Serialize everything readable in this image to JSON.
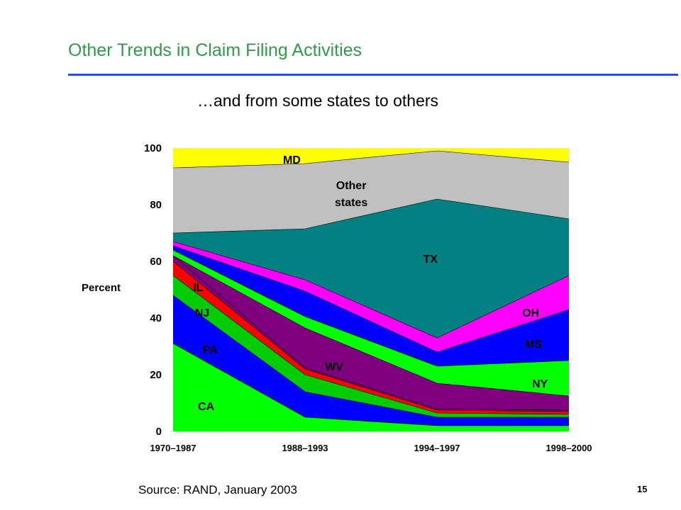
{
  "slide": {
    "title": "Other Trends in Claim Filing Activities",
    "subtitle": "…and from some states to others",
    "source": "Source: RAND, January 2003",
    "page_number": "15",
    "title_color": "#33994d",
    "rule_color": "#2a4fe0"
  },
  "chart_data": {
    "type": "area",
    "stacked": true,
    "categories": [
      "1970–1987",
      "1988–1993",
      "1994–1997",
      "1998–2000"
    ],
    "ylabel": "Percent",
    "ylim": [
      0,
      100
    ],
    "yticks": [
      0,
      20,
      40,
      60,
      80,
      100
    ],
    "grid": false,
    "series": [
      {
        "name": "CA",
        "values": [
          31,
          5,
          2,
          2
        ],
        "color": "#00ff00"
      },
      {
        "name": "PA",
        "values": [
          17,
          9,
          3,
          3
        ],
        "color": "#0000ff"
      },
      {
        "name": "NJ",
        "values": [
          7,
          6,
          1.5,
          1
        ],
        "color": "#00cc00"
      },
      {
        "name": "",
        "values": [
          5,
          2,
          1,
          1
        ],
        "color": "#ff0000"
      },
      {
        "name": "IL",
        "values": [
          2,
          0.5,
          0.5,
          0.5
        ],
        "color": "#7f007f"
      },
      {
        "name": "WV",
        "values": [
          0,
          14,
          9,
          5
        ],
        "color": "#7f007f"
      },
      {
        "name": "NY",
        "values": [
          2,
          4,
          6,
          12.5
        ],
        "color": "#00ff00"
      },
      {
        "name": "MS",
        "values": [
          1.5,
          9,
          5,
          18
        ],
        "color": "#0000ff"
      },
      {
        "name": "OH",
        "values": [
          1.5,
          4,
          5,
          12
        ],
        "color": "#ff00ff"
      },
      {
        "name": "TX",
        "values": [
          3,
          18,
          49,
          20
        ],
        "color": "#008080"
      },
      {
        "name": "Other states",
        "values": [
          23,
          23,
          17,
          20
        ],
        "color": "#c0c0c0"
      },
      {
        "name": "MD",
        "values": [
          7,
          5.5,
          1,
          5
        ],
        "color": "#ffff00"
      }
    ],
    "area_labels": [
      {
        "text": "CA",
        "pos": [
          0.25,
          9
        ]
      },
      {
        "text": "PA",
        "pos": [
          0.28,
          29
        ]
      },
      {
        "text": "NJ",
        "pos": [
          0.22,
          42
        ]
      },
      {
        "text": "IL",
        "pos": [
          0.19,
          51
        ]
      },
      {
        "text": "WV",
        "pos": [
          1.22,
          23
        ]
      },
      {
        "text": "NY",
        "pos": [
          2.78,
          17
        ]
      },
      {
        "text": "MS",
        "pos": [
          2.73,
          31
        ]
      },
      {
        "text": "OH",
        "pos": [
          2.71,
          42
        ]
      },
      {
        "text": "TX",
        "pos": [
          1.95,
          61
        ]
      },
      {
        "text": "Other",
        "pos": [
          1.35,
          87
        ]
      },
      {
        "text": "states",
        "pos": [
          1.35,
          81
        ]
      },
      {
        "text": "MD",
        "pos": [
          0.9,
          96
        ]
      }
    ]
  }
}
